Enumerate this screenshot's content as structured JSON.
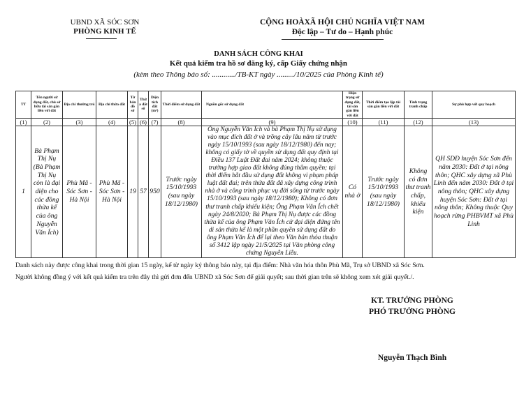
{
  "header": {
    "left_line1": "UBND XÃ SÓC SƠN",
    "left_line2": "PHÒNG KINH TẾ",
    "right_line1": "CỘNG HOÀXÃ HỘI CHỦ NGHĨA VIỆT NAM",
    "right_line2": "Độc lập – Tư do – Hạnh phúc"
  },
  "title": {
    "line1": "DANH SÁCH CÔNG KHAI",
    "line2": "Kết quả kiểm tra hồ sơ đăng ký, cấp Giấy chứng nhận",
    "line3": "(kèm theo Thông báo số: ............/TB-KT ngày ........./10/2025 của Phòng Kinh tế)"
  },
  "table": {
    "headers": [
      "TT",
      "Tên người sử dụng đất, chủ sở hữu tài sản gắn liền với đất",
      "Địa chỉ thường trú",
      "Địa chỉ thửa đất",
      "Tờ bản đồ số",
      "Thửa đất số",
      "Diện tích đất (m²)",
      "Thời điểm sử dụng đất",
      "Nguồn gốc sử dụng đất",
      "Hiện trạng sử dụng đất, tài sản gắn liền với đất",
      "Thời điểm tạo lập tài sản gắn liền với đất",
      "Tình trạng tranh chấp",
      "Sự phù hợp với quy hoạch"
    ],
    "column_numbers": [
      "(1)",
      "(2)",
      "(3)",
      "(4)",
      "(5)",
      "(6)",
      "(7)",
      "(8)",
      "(9)",
      "(10)",
      "(11)",
      "(12)",
      "(13)"
    ],
    "rows": [
      [
        "1",
        "Bà Phạm Thị Nụ (Bà Phạm Thị Nụ còn là đại diện cho các đồng thừa kế của ông Nguyễn Văn Ích)",
        "Phù Mã - Sóc Sơn - Hà Nội",
        "Phù Mã - Sóc Sơn - Hà Nội",
        "19",
        "57",
        "950",
        "Trước ngày 15/10/1993 (sau ngày 18/12/1980)",
        "Ông Nguyễn Văn Ích và bà Phạm Thị Nụ sử dụng vào mục đích đất ở và trồng cây lâu năm từ trước ngày 15/10/1993 (sau ngày 18/12/1980) đến nay; không có giấy tờ về quyền sử dụng đất quy định tại Điều 137 Luật Đất đai năm 2024; không thuộc trường hợp giao đất không đúng thẩm quyền; tại thời điểm bắt đầu sử dụng đất không vi phạm pháp luật đất đai; trên thửa đất đã xây dựng công trình nhà ở và công trình phục vụ đời sống từ  trước ngày 15/10/1993 (sau ngày 18/12/1980); Không có đơn thư tranh chấp khiếu kiện; Ông Phạm Văn Ích chết ngày 24/8/2020; Bà Phạm Thị Nụ được các đồng thừa kế của ông Phạm Văn Ích cử đại diện đứng tên di sản thừa kế là một phần quyền sử dụng đất do ông Phạm Văn Ích để lại theo Văn bản thỏa thuận số 3412 lập ngày 21/5/2025 tại Văn phòng công chứng Nguyễn Liễu.",
        "Có nhà ở",
        "Trước ngày 15/10/1993 (sau ngày 18/12/1980)",
        "Không có đơn thư tranh chấp, khiếu kiện",
        "QH SDĐ huyện Sóc Sơn đến năm 2030: Đất ở tại nông thôn; QHC xây dựng xã Phù Linh đến năm 2030: Đất ở tại nông thôn; QHC xây dựng huyện Sóc Sơn: Đất ở tại nông thôn; Không thuộc Quy hoạch rừng PHBVMT xã Phù Linh"
      ]
    ]
  },
  "notes": [
    "Danh sách này được công khai trong thời gian 15 ngày, kể từ ngày ký thông báo này, tại địa điểm: Nhà văn hóa thôn Phù Mã, Trụ sở UBND xã Sóc Sơn.",
    "Người không đồng ý với kết quả kiểm tra trên đây thì gửi đơn đến UBND xã Sóc Sơn để giải quyết; sau thời gian trên sẽ không xem xét giải quyết./."
  ],
  "signature": {
    "line1": "KT. TRƯỞNG PHÒNG",
    "line2": "PHÓ TRƯỞNG PHÒNG",
    "name": "Nguyễn Thạch Bình"
  }
}
